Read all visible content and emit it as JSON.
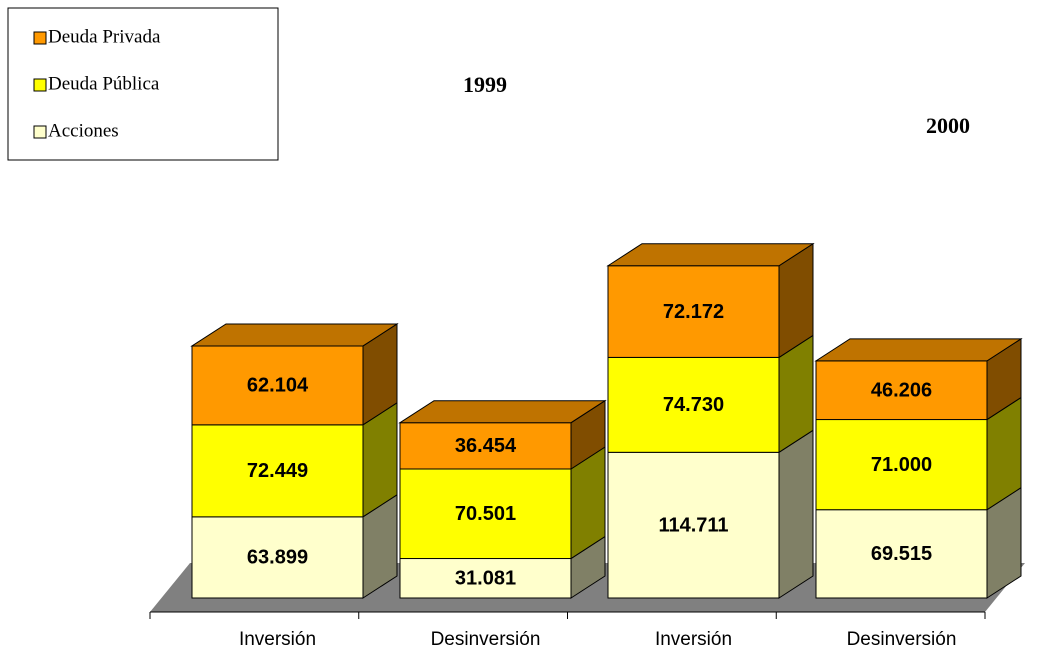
{
  "chart_data": {
    "type": "bar3d_stacked",
    "categories": [
      "Inversión",
      "Desinversión",
      "Inversión",
      "Desinversión"
    ],
    "group_labels": [
      "1999",
      "2000"
    ],
    "series": [
      {
        "name": "Acciones",
        "color": "#ffffcc",
        "values": [
          63899,
          31081,
          114711,
          69515
        ],
        "value_labels": [
          "63.899",
          "31.081",
          "114.711",
          "69.515"
        ]
      },
      {
        "name": "Deuda Pública",
        "color": "#ffff00",
        "values": [
          72449,
          70501,
          74730,
          71000
        ],
        "value_labels": [
          "72.449",
          "70.501",
          "74.730",
          "71.000"
        ]
      },
      {
        "name": "Deuda Privada",
        "color": "#ff9900",
        "values": [
          62104,
          36454,
          72172,
          46206
        ],
        "value_labels": [
          "62.104",
          "36.454",
          "72.172",
          "46.206"
        ]
      }
    ],
    "floor_color": "#808080"
  }
}
